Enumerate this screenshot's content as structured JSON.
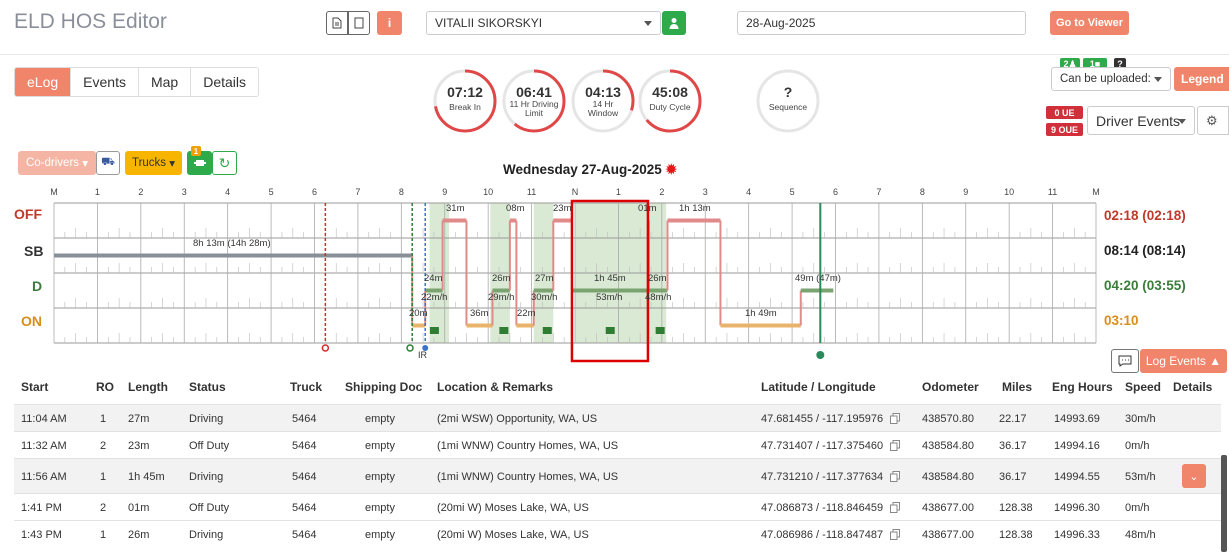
{
  "app": {
    "title": "ELD HOS Editor"
  },
  "header": {
    "driver": "VITALII SIKORSKYI",
    "date": "28-Aug-2025",
    "go_to_viewer": "Go to Viewer"
  },
  "tabs": [
    {
      "label": "eLog",
      "active": true
    },
    {
      "label": "Events"
    },
    {
      "label": "Map"
    },
    {
      "label": "Details"
    }
  ],
  "gauges": [
    {
      "value": "07:12",
      "label": "Break In",
      "fraction": 0.72,
      "color": "#e04848"
    },
    {
      "value": "06:41",
      "label": "11 Hr Driving Limit",
      "fraction": 0.61,
      "color": "#e04848"
    },
    {
      "value": "04:13",
      "label": "14 Hr Window",
      "fraction": 0.3,
      "color": "#e04848"
    },
    {
      "value": "45:08",
      "label": "Duty Cycle",
      "fraction": 0.64,
      "color": "#e04848"
    },
    {
      "value": "?",
      "label": "Sequence",
      "fraction": 0,
      "color": "#ddd"
    }
  ],
  "right_panel": {
    "badge_1": "2",
    "badge_2": "1",
    "badge_q": "?",
    "can_be_uploaded": "Can be uploaded:",
    "legend": "Legend",
    "ue": "0 UE",
    "oue": "9 OUE",
    "driver_events": "Driver Events"
  },
  "toolbar": {
    "codrivers": "Co-drivers",
    "trucks": "Trucks",
    "notif": "1"
  },
  "chart": {
    "day_title": "Wednesday 27-Aug-2025",
    "hour_labels": [
      "M",
      "1",
      "2",
      "3",
      "4",
      "5",
      "6",
      "7",
      "8",
      "9",
      "10",
      "11",
      "N",
      "1",
      "2",
      "3",
      "4",
      "5",
      "6",
      "7",
      "8",
      "9",
      "10",
      "11",
      "M"
    ],
    "rows": [
      {
        "label": "OFF",
        "color": "#c0392b",
        "total": "02:18 (02:18)"
      },
      {
        "label": "SB",
        "color": "#333",
        "total": "08:14 (08:14)"
      },
      {
        "label": "D",
        "color": "#3a7d3a",
        "total": "04:20 (03:55)"
      },
      {
        "label": "ON",
        "color": "#d98e1a",
        "total": "03:10"
      }
    ],
    "segment_labels": [
      {
        "t": "31m"
      },
      {
        "t": "08m"
      },
      {
        "t": "23m"
      },
      {
        "t": "01m"
      },
      {
        "t": "1h 13m"
      },
      {
        "t": "8h 13m (14h 28m)"
      },
      {
        "t": "24m"
      },
      {
        "t": "22m/h"
      },
      {
        "t": "26m"
      },
      {
        "t": "29m/h"
      },
      {
        "t": "27m"
      },
      {
        "t": "30m/h"
      },
      {
        "t": "1h 45m"
      },
      {
        "t": "53m/h"
      },
      {
        "t": "26m"
      },
      {
        "t": "48m/h"
      },
      {
        "t": "49m (47m)"
      },
      {
        "t": "20m"
      },
      {
        "t": "36m"
      },
      {
        "t": "22m"
      },
      {
        "t": "1h 49m"
      }
    ],
    "ir": "IR"
  },
  "log_events_label": "Log Events",
  "table": {
    "columns": [
      "Start",
      "RO",
      "Length",
      "Status",
      "Truck",
      "Shipping Doc",
      "Location & Remarks",
      "Latitude / Longitude",
      "Odometer",
      "Miles",
      "Eng Hours",
      "Speed",
      "Details"
    ],
    "rows": [
      {
        "start": "11:04 AM",
        "ro": "1",
        "length": "27m",
        "status": "Driving",
        "truck": "5464",
        "doc": "empty",
        "loc": "(2mi WSW) Opportunity, WA, US",
        "latlon": "47.681455 / -117.195976",
        "odo": "438570.80",
        "miles": "22.17",
        "eng": "14993.69",
        "speed": "30m/h"
      },
      {
        "start": "11:32 AM",
        "ro": "2",
        "length": "23m",
        "status": "Off Duty",
        "truck": "5464",
        "doc": "empty",
        "loc": "(1mi WNW) Country Homes, WA, US",
        "latlon": "47.731407 / -117.375460",
        "odo": "438584.80",
        "miles": "36.17",
        "eng": "14994.16",
        "speed": "0m/h"
      },
      {
        "start": "11:56 AM",
        "ro": "1",
        "length": "1h 45m",
        "status": "Driving",
        "truck": "5464",
        "doc": "empty",
        "loc": "(1mi WNW) Country Homes, WA, US",
        "latlon": "47.731210 / -117.377634",
        "odo": "438584.80",
        "miles": "36.17",
        "eng": "14994.55",
        "speed": "53m/h"
      },
      {
        "start": "1:41 PM",
        "ro": "2",
        "length": "01m",
        "status": "Off Duty",
        "truck": "5464",
        "doc": "empty",
        "loc": "(20mi W) Moses Lake, WA, US",
        "latlon": "47.086873 / -118.846459",
        "odo": "438677.00",
        "miles": "128.38",
        "eng": "14996.30",
        "speed": "0m/h"
      },
      {
        "start": "1:43 PM",
        "ro": "1",
        "length": "26m",
        "status": "Driving",
        "truck": "5464",
        "doc": "empty",
        "loc": "(20mi W) Moses Lake, WA, US",
        "latlon": "47.086986 / -118.847487",
        "odo": "438677.00",
        "miles": "128.38",
        "eng": "14996.33",
        "speed": "48m/h"
      }
    ]
  }
}
